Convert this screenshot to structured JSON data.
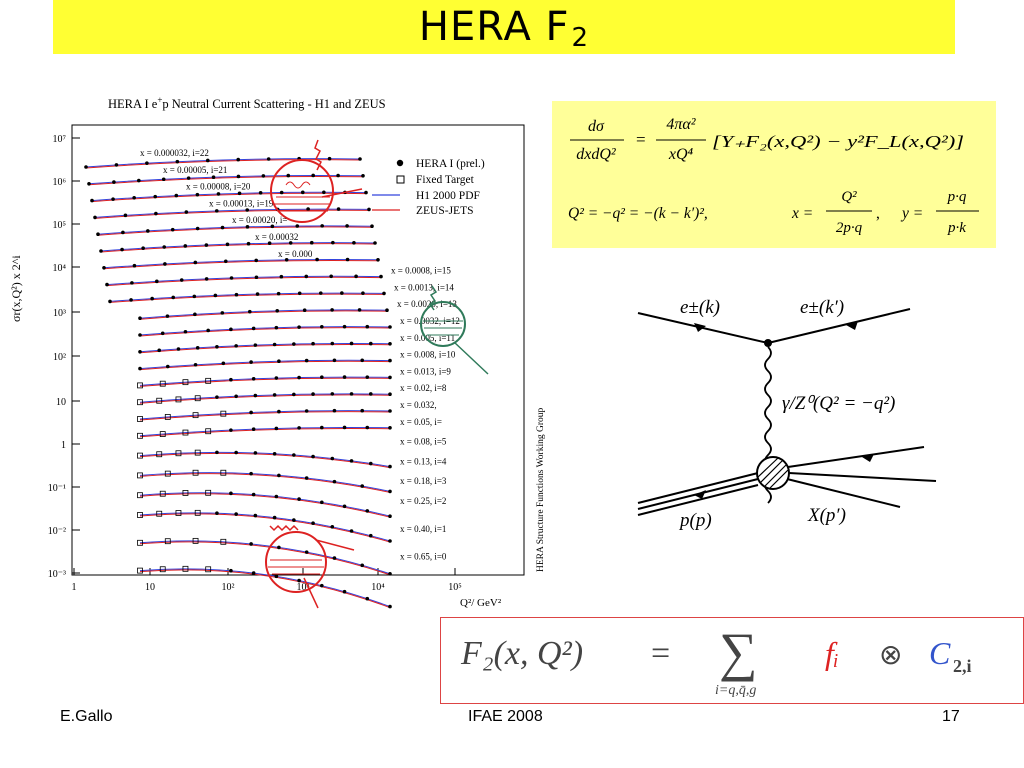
{
  "title": {
    "main": "HERA F",
    "sub": "2"
  },
  "plot": {
    "header": "HERA I e",
    "header_sup": "+",
    "header_rest": "p Neutral Current Scattering - H1 and ZEUS",
    "ylabel": "σr(x,Q²) x 2^i",
    "xlabel": "Q²/ GeV²",
    "side_label": "HERA Structure Functions Working Group",
    "y_ticks": [
      "10⁷",
      "10⁶",
      "10⁵",
      "10⁴",
      "10³",
      "10²",
      "10",
      "1",
      "10⁻¹",
      "10⁻²",
      "10⁻³"
    ],
    "x_ticks": [
      "1",
      "10",
      "10²",
      "10³",
      "10⁴",
      "10⁵"
    ],
    "legend": [
      "HERA I (prel.)",
      "Fixed Target",
      "H1 2000 PDF",
      "ZEUS-JETS"
    ],
    "bin_labels": [
      "x = 0.000032, i=22",
      "x = 0.00005, i=21",
      "x = 0.00008, i=20",
      "x = 0.00013, i=19",
      "x = 0.00020, i=",
      "x = 0.00032",
      "x = 0.000",
      "x = 0.0008, i=15",
      "x = 0.0013, i=14",
      "x = 0.0020, i=13",
      "x = 0.0032, i=12",
      "x = 0.005, i=11",
      "x = 0.008, i=10",
      "x = 0.013, i=9",
      "x = 0.02, i=8",
      "x = 0.032,",
      "x = 0.05, i=",
      "x = 0.08, i=5",
      "x = 0.13, i=4",
      "x = 0.18, i=3",
      "x = 0.25, i=2",
      "x = 0.40, i=1",
      "x = 0.65, i=0"
    ]
  },
  "formulas": {
    "line1_lhs_num": "dσ",
    "line1_lhs_den": "dxdQ²",
    "line1_eq": "=",
    "line1_pref_num": "4πα²",
    "line1_pref_den": "xQ⁴",
    "line1_bracket": "[Y₊F₂(x,Q²) − y²F_L(x,Q²)]",
    "line2_a": "Q² = −q² = −(k − k′)²,",
    "line2_x": "x =",
    "line2_x_num": "Q²",
    "line2_x_den": "2p·q",
    "line2_comma": ",",
    "line2_y": "y =",
    "line2_y_num": "p·q",
    "line2_y_den": "p·k"
  },
  "feynman": {
    "e_in": "e±(k)",
    "e_out": "e±(k′)",
    "boson": "γ/Z⁰(Q² = −q²)",
    "proton": "p(p)",
    "final": "X(p′)"
  },
  "equation": {
    "lhs": "F₂(x, Q²)",
    "eq": "=",
    "sum_sub": "i=q,q̄,g",
    "f": "fᵢ",
    "otimes": "⊗",
    "C": "C",
    "C_sub": "2,i"
  },
  "footer": {
    "left": "E.Gallo",
    "center": "IFAE 2008",
    "right": "17"
  },
  "colors": {
    "title_bg": "#ffff33",
    "formula_bg": "#ffff99",
    "h1_curve": "#3344dd",
    "zeus_curve": "#dd2222",
    "accent_red": "#dd2222",
    "accent_blue": "#3355cc",
    "green": "#2f7a5a"
  }
}
